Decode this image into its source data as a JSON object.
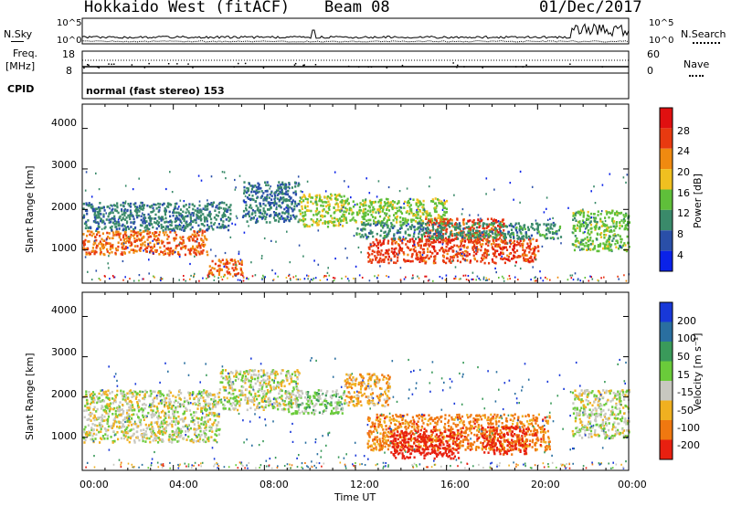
{
  "header": {
    "title": "Hokkaido West (fitACF)",
    "beam": "Beam 08",
    "date": "01/Dec/2017"
  },
  "noise_panel": {
    "left_label": "N.Sky",
    "right_label": "N.Search",
    "top_tick": "10^5",
    "bottom_tick": "10^0"
  },
  "freq_panel": {
    "left_label_1": "Freq.",
    "left_label_2": "[MHz]",
    "left_top": "18",
    "left_bottom": "8",
    "right_top": "60",
    "right_bottom": "0",
    "right_label": "Nave"
  },
  "cpid_panel": {
    "label": "CPID",
    "text": "normal (fast stereo) 153"
  },
  "power_panel": {
    "ylabel": "Slant Range [km]",
    "yticks": [
      "1000",
      "2000",
      "3000",
      "4000"
    ],
    "colorbar_label": "Power [dB]",
    "colorbar_ticks": [
      "4",
      "8",
      "12",
      "16",
      "20",
      "24",
      "28"
    ],
    "colors": [
      "#0a22e8",
      "#2a4fa8",
      "#3a8a6a",
      "#5fbf3a",
      "#f0c020",
      "#f08a10",
      "#e83a10",
      "#e01010"
    ]
  },
  "velocity_panel": {
    "ylabel": "Slant Range [km]",
    "yticks": [
      "1000",
      "2000",
      "3000",
      "4000"
    ],
    "colorbar_label": "Velocity [m s⁻¹]",
    "colorbar_ticks": [
      "200",
      "100",
      "50",
      "15",
      "-15",
      "-50",
      "-100",
      "-200"
    ],
    "colors": [
      "#1838d8",
      "#2a6fa0",
      "#3a9a5a",
      "#6acb3a",
      "#c8c8c0",
      "#f0b020",
      "#f07810",
      "#e82010"
    ]
  },
  "xaxis": {
    "label": "Time UT",
    "ticks": [
      "00:00",
      "04:00",
      "08:00",
      "12:00",
      "16:00",
      "20:00",
      "00:00"
    ]
  },
  "chart_data": [
    {
      "type": "heatmap",
      "title": "Power",
      "xlabel": "Time UT",
      "ylabel": "Slant Range [km]",
      "xlim": [
        0,
        24
      ],
      "ylim": [
        180,
        4600
      ],
      "zlabel": "Power [dB]",
      "zlim": [
        0,
        32
      ],
      "bands": [
        {
          "t0": 0.0,
          "t1": 5.5,
          "r0": 900,
          "r1": 1500,
          "z": 24
        },
        {
          "t0": 0.0,
          "t1": 6.5,
          "r0": 1500,
          "r1": 2200,
          "z": 9
        },
        {
          "t0": 5.5,
          "t1": 7.0,
          "r0": 400,
          "r1": 800,
          "z": 24
        },
        {
          "t0": 7.0,
          "t1": 9.5,
          "r0": 1700,
          "r1": 2700,
          "z": 8
        },
        {
          "t0": 9.5,
          "t1": 11.5,
          "r0": 1600,
          "r1": 2400,
          "z": 16
        },
        {
          "t0": 11.5,
          "t1": 16.0,
          "r0": 1700,
          "r1": 2300,
          "z": 15
        },
        {
          "t0": 12.5,
          "t1": 20.0,
          "r0": 700,
          "r1": 1300,
          "z": 26
        },
        {
          "t0": 15.0,
          "t1": 18.5,
          "r0": 1200,
          "r1": 1800,
          "z": 26
        },
        {
          "t0": 12.0,
          "t1": 21.0,
          "r0": 1300,
          "r1": 1700,
          "z": 10
        },
        {
          "t0": 21.5,
          "t1": 24.0,
          "r0": 1000,
          "r1": 2000,
          "z": 14
        }
      ]
    },
    {
      "type": "heatmap",
      "title": "Velocity",
      "xlabel": "Time UT",
      "ylabel": "Slant Range [km]",
      "xlim": [
        0,
        24
      ],
      "ylim": [
        180,
        4600
      ],
      "zlabel": "Velocity [m s⁻¹]",
      "zlim": [
        -200,
        200
      ],
      "bands": [
        {
          "t0": 0.0,
          "t1": 6.0,
          "r0": 900,
          "r1": 2200,
          "z": 0
        },
        {
          "t0": 6.0,
          "t1": 9.5,
          "r0": 1700,
          "r1": 2700,
          "z": 0
        },
        {
          "t0": 9.0,
          "t1": 11.5,
          "r0": 1600,
          "r1": 2200,
          "z": 30
        },
        {
          "t0": 11.5,
          "t1": 13.5,
          "r0": 1800,
          "r1": 2600,
          "z": -40
        },
        {
          "t0": 12.5,
          "t1": 20.5,
          "r0": 700,
          "r1": 1600,
          "z": -70
        },
        {
          "t0": 13.5,
          "t1": 16.5,
          "r0": 500,
          "r1": 1200,
          "z": -150
        },
        {
          "t0": 17.5,
          "t1": 19.5,
          "r0": 600,
          "r1": 1300,
          "z": -120
        },
        {
          "t0": 21.5,
          "t1": 24.0,
          "r0": 1000,
          "r1": 2200,
          "z": 5
        }
      ]
    }
  ]
}
